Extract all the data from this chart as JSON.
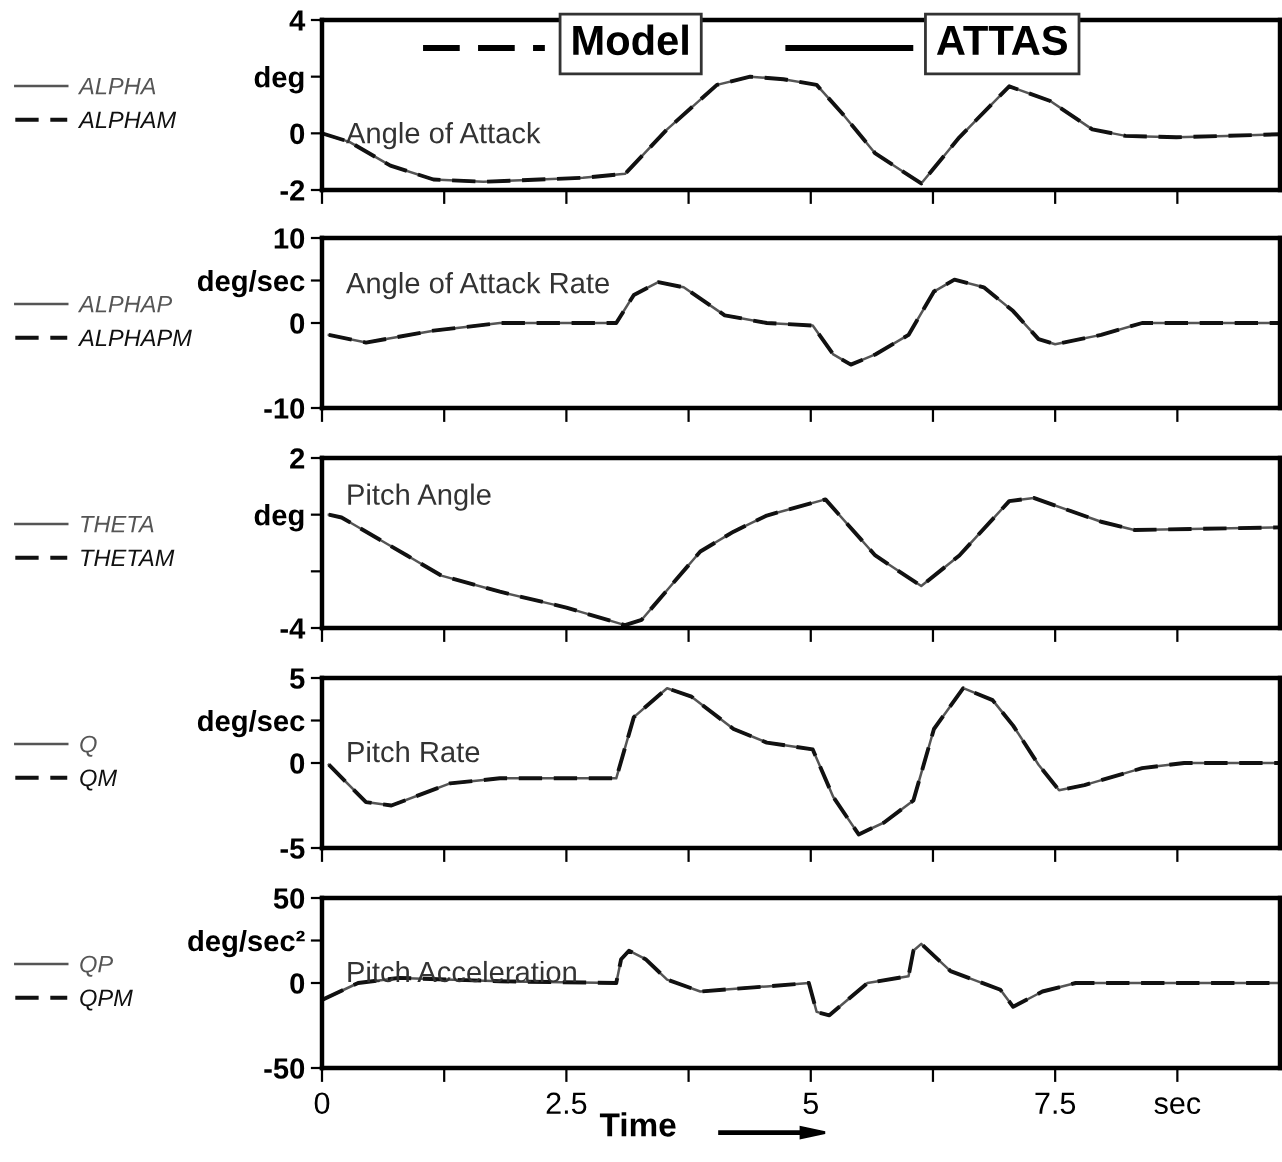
{
  "chart_data": [
    {
      "type": "line",
      "title": "Angle of Attack",
      "annotations": [
        "Model",
        "ATTAS"
      ],
      "legend": "left",
      "tick_labels": "y",
      "grid": false,
      "xlim": [
        0,
        9.8
      ],
      "xticks": [
        {
          "value": 0,
          "label": null
        },
        {
          "value": 1.25,
          "label": null
        },
        {
          "value": 2.5,
          "label": null
        },
        {
          "value": 3.75,
          "label": null
        },
        {
          "value": 5,
          "label": null
        },
        {
          "value": 6.25,
          "label": null
        },
        {
          "value": 7.5,
          "label": null
        },
        {
          "value": 8.75,
          "label": null
        }
      ],
      "ylim": [
        -2,
        4
      ],
      "yticks": [
        -2,
        0,
        {
          "value": 2,
          "label": "deg"
        },
        4
      ],
      "x": [
        0,
        0.28,
        0.7,
        1.14,
        1.65,
        2.67,
        3.1,
        3.53,
        4.04,
        4.38,
        4.72,
        5.06,
        5.32,
        5.66,
        6.13,
        6.52,
        7.03,
        7.45,
        7.88,
        8.22,
        8.74,
        9.25,
        9.8
      ],
      "series": [
        {
          "name": "ALPHA",
          "color": "#555555",
          "line_style": "solid",
          "values": [
            0,
            -0.3,
            -1.14,
            -1.63,
            -1.71,
            -1.57,
            -1.43,
            0.14,
            1.71,
            2.0,
            1.91,
            1.71,
            0.71,
            -0.71,
            -1.77,
            -0.14,
            1.66,
            1.14,
            0.14,
            -0.09,
            -0.14,
            -0.09,
            -0.03
          ]
        },
        {
          "name": "ALPHAM",
          "color": "#111111",
          "line_style": "dashed",
          "values": [
            0,
            -0.3,
            -1.14,
            -1.63,
            -1.71,
            -1.57,
            -1.43,
            0.14,
            1.71,
            2.0,
            1.91,
            1.71,
            0.71,
            -0.71,
            -1.77,
            -0.14,
            1.66,
            1.14,
            0.14,
            -0.09,
            -0.14,
            -0.09,
            -0.03
          ]
        }
      ]
    },
    {
      "type": "line",
      "title": "Angle of Attack Rate",
      "legend": "left",
      "tick_labels": "y",
      "grid": false,
      "xlim": [
        0,
        9.8
      ],
      "xticks": [
        {
          "value": 0,
          "label": null
        },
        {
          "value": 1.25,
          "label": null
        },
        {
          "value": 2.5,
          "label": null
        },
        {
          "value": 3.75,
          "label": null
        },
        {
          "value": 5,
          "label": null
        },
        {
          "value": 6.25,
          "label": null
        },
        {
          "value": 7.5,
          "label": null
        },
        {
          "value": 8.75,
          "label": null
        }
      ],
      "ylim": [
        -10,
        10
      ],
      "yticks": [
        -10,
        0,
        {
          "value": 5,
          "label": "deg/sec"
        },
        10
      ],
      "x": [
        0.07,
        0.45,
        1.14,
        1.82,
        3.01,
        3.19,
        3.44,
        3.7,
        4.12,
        4.55,
        5.02,
        5.23,
        5.41,
        5.66,
        6.0,
        6.26,
        6.47,
        6.77,
        7.07,
        7.33,
        7.5,
        7.97,
        8.39,
        9.8
      ],
      "series": [
        {
          "name": "ALPHAP",
          "color": "#555555",
          "line_style": "solid",
          "values": [
            -1.4,
            -2.3,
            -0.9,
            0,
            0,
            3.3,
            4.8,
            4.2,
            0.9,
            0,
            -0.3,
            -3.7,
            -4.9,
            -3.7,
            -1.4,
            3.7,
            5.1,
            4.2,
            1.4,
            -1.9,
            -2.5,
            -1.4,
            0,
            0
          ]
        },
        {
          "name": "ALPHAPM",
          "color": "#111111",
          "line_style": "dashed",
          "values": [
            -1.4,
            -2.3,
            -0.9,
            0,
            0,
            3.3,
            4.8,
            4.2,
            0.9,
            0,
            -0.3,
            -3.7,
            -4.9,
            -3.7,
            -1.4,
            3.7,
            5.1,
            4.2,
            1.4,
            -1.9,
            -2.5,
            -1.4,
            0,
            0
          ]
        }
      ]
    },
    {
      "type": "line",
      "title": "Pitch Angle",
      "legend": "left",
      "tick_labels": "y",
      "grid": false,
      "xlim": [
        0,
        9.8
      ],
      "xticks": [
        {
          "value": 0,
          "label": null
        },
        {
          "value": 1.25,
          "label": null
        },
        {
          "value": 2.5,
          "label": null
        },
        {
          "value": 3.75,
          "label": null
        },
        {
          "value": 5,
          "label": null
        },
        {
          "value": 6.25,
          "label": null
        },
        {
          "value": 7.5,
          "label": null
        },
        {
          "value": 8.75,
          "label": null
        }
      ],
      "ylim": [
        -4,
        2
      ],
      "yticks": [
        -4,
        {
          "value": -2,
          "label": null
        },
        {
          "value": 0,
          "label": "deg"
        },
        2
      ],
      "x": [
        0.07,
        0.2,
        0.87,
        1.22,
        1.82,
        2.5,
        3.1,
        3.27,
        3.87,
        4.21,
        4.55,
        5.15,
        5.66,
        6.13,
        6.52,
        7.03,
        7.28,
        7.97,
        8.31,
        9.8
      ],
      "series": [
        {
          "name": "THETA",
          "color": "#555555",
          "line_style": "solid",
          "values": [
            0,
            -0.1,
            -1.44,
            -2.15,
            -2.72,
            -3.28,
            -3.9,
            -3.71,
            -1.3,
            -0.6,
            -0.03,
            0.54,
            -1.44,
            -2.52,
            -1.44,
            0.48,
            0.59,
            -0.25,
            -0.54,
            -0.45
          ]
        },
        {
          "name": "THETAM",
          "color": "#111111",
          "line_style": "dashed",
          "values": [
            0,
            -0.1,
            -1.44,
            -2.15,
            -2.72,
            -3.28,
            -3.9,
            -3.71,
            -1.3,
            -0.6,
            -0.03,
            0.54,
            -1.44,
            -2.52,
            -1.44,
            0.48,
            0.59,
            -0.25,
            -0.54,
            -0.45
          ]
        }
      ]
    },
    {
      "type": "line",
      "title": "Pitch Rate",
      "legend": "left",
      "tick_labels": "y",
      "grid": false,
      "xlim": [
        0,
        9.8
      ],
      "xticks": [
        {
          "value": 0,
          "label": null
        },
        {
          "value": 1.25,
          "label": null
        },
        {
          "value": 2.5,
          "label": null
        },
        {
          "value": 3.75,
          "label": null
        },
        {
          "value": 5,
          "label": null
        },
        {
          "value": 6.25,
          "label": null
        },
        {
          "value": 7.5,
          "label": null
        },
        {
          "value": 8.75,
          "label": null
        }
      ],
      "ylim": [
        -5,
        5
      ],
      "yticks": [
        -5,
        0,
        {
          "value": 2.5,
          "label": "deg/sec"
        },
        5
      ],
      "x": [
        0.07,
        0.45,
        0.71,
        1.31,
        1.82,
        3.01,
        3.19,
        3.53,
        3.78,
        4.21,
        4.55,
        5.02,
        5.23,
        5.49,
        5.75,
        6.05,
        6.26,
        6.56,
        6.86,
        7.07,
        7.33,
        7.54,
        7.8,
        8.39,
        8.82,
        9.8
      ],
      "series": [
        {
          "name": "Q",
          "color": "#555555",
          "line_style": "solid",
          "values": [
            -0.1,
            -2.3,
            -2.5,
            -1.2,
            -0.9,
            -0.9,
            2.7,
            4.4,
            3.9,
            2.0,
            1.2,
            0.8,
            -2.0,
            -4.2,
            -3.5,
            -2.2,
            2.0,
            4.4,
            3.7,
            2.2,
            -0.1,
            -1.6,
            -1.3,
            -0.3,
            0,
            0
          ]
        },
        {
          "name": "QM",
          "color": "#111111",
          "line_style": "dashed",
          "values": [
            -0.1,
            -2.3,
            -2.5,
            -1.2,
            -0.9,
            -0.9,
            2.7,
            4.4,
            3.9,
            2.0,
            1.2,
            0.8,
            -2.0,
            -4.2,
            -3.5,
            -2.2,
            2.0,
            4.4,
            3.7,
            2.2,
            -0.1,
            -1.6,
            -1.3,
            -0.3,
            0,
            0
          ]
        }
      ]
    },
    {
      "type": "line",
      "title": "Pitch Acceleration",
      "xlabel": "Time",
      "legend": "left",
      "grid": false,
      "xlim": [
        0,
        9.8
      ],
      "xticks": [
        0,
        {
          "value": 1.25,
          "label": null
        },
        2.5,
        {
          "value": 3.75,
          "label": null
        },
        5,
        {
          "value": 6.25,
          "label": null
        },
        7.5,
        {
          "value": 8.75,
          "label": "sec"
        }
      ],
      "ylim": [
        -50,
        50
      ],
      "yticks": [
        -50,
        0,
        {
          "value": 25,
          "label": "deg/sec²"
        },
        50
      ],
      "x": [
        0,
        0.37,
        0.79,
        1.82,
        3.01,
        3.06,
        3.14,
        3.31,
        3.53,
        3.87,
        4.55,
        4.98,
        5.06,
        5.19,
        5.58,
        6.0,
        6.05,
        6.13,
        6.43,
        6.94,
        7.07,
        7.37,
        7.71,
        9.8
      ],
      "series": [
        {
          "name": "QP",
          "color": "#555555",
          "line_style": "solid",
          "values": [
            -10,
            0,
            3,
            1,
            0,
            14,
            19,
            14,
            2,
            -5,
            -2,
            0,
            -17,
            -19,
            0,
            4,
            19,
            23,
            7,
            -4,
            -14,
            -5,
            0,
            0
          ]
        },
        {
          "name": "QPM",
          "color": "#111111",
          "line_style": "dashed",
          "values": [
            -10,
            0,
            3,
            1,
            0,
            14,
            19,
            14,
            2,
            -5,
            -2,
            0,
            -17,
            -19,
            0,
            4,
            19,
            23,
            7,
            -4,
            -14,
            -5,
            0,
            0
          ]
        }
      ]
    }
  ]
}
